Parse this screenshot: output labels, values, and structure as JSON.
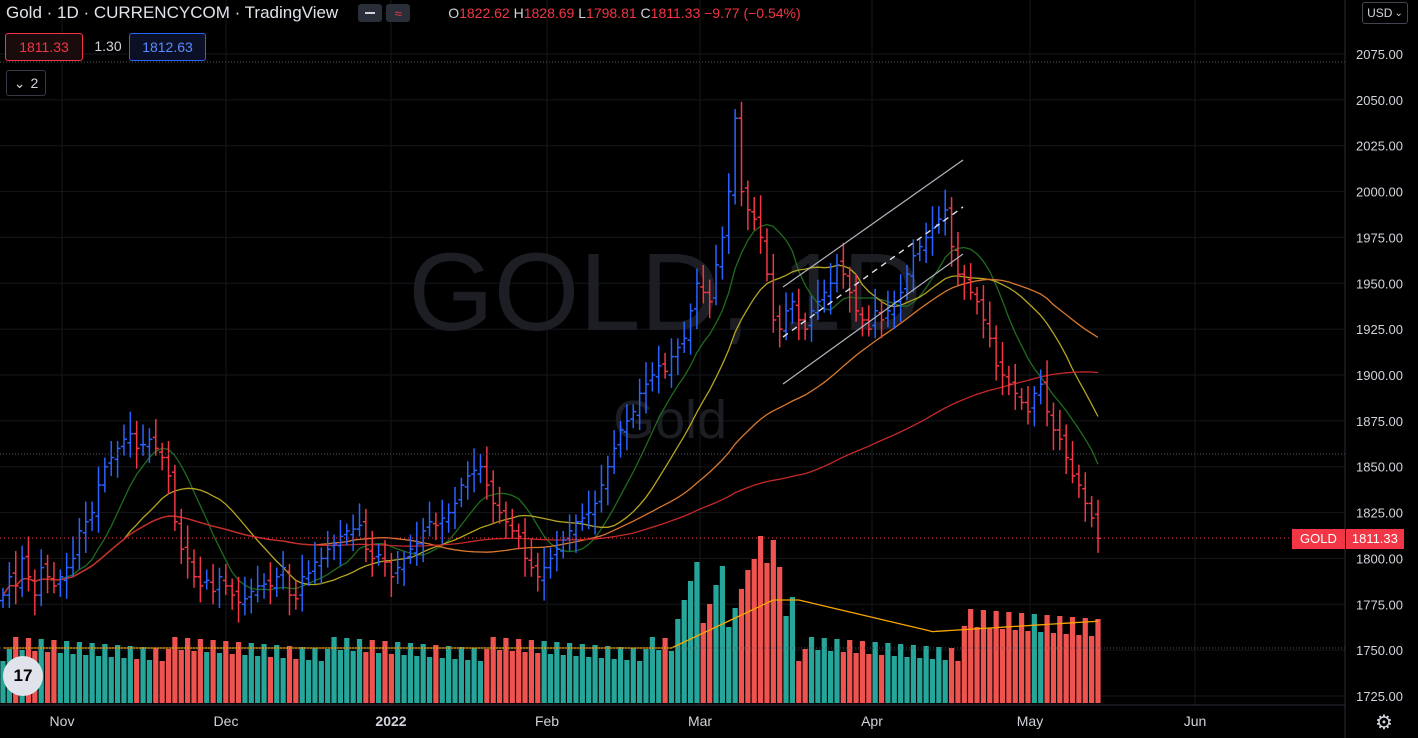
{
  "header": {
    "title": "Gold · 1D · CURRENCYCOM · TradingView",
    "ohlc": {
      "o_label": "O",
      "o": "1822.62",
      "h_label": "H",
      "h": "1828.69",
      "l_label": "L",
      "l": "1798.81",
      "c_label": "C",
      "c": "1811.33",
      "change": "−9.77 (−0.54%)"
    }
  },
  "quote": {
    "bid": "1811.33",
    "spread": "1.30",
    "ask": "1812.63"
  },
  "indicators_count": "2",
  "currency": "USD",
  "price_label": {
    "symbol": "GOLD",
    "value": "1811.33"
  },
  "watermark": {
    "main": "GOLD, 1D",
    "sub": "Gold"
  },
  "colors": {
    "up": "#2962ff",
    "down": "#f23645",
    "vol_up": "#26a69a",
    "vol_down": "#ef5350",
    "accent": "#f23645"
  },
  "chart_data": {
    "type": "bar",
    "ylim": [
      1720,
      2085
    ],
    "y_ticks": [
      1725,
      1750,
      1775,
      1800,
      1825,
      1850,
      1875,
      1900,
      1925,
      1950,
      1975,
      2000,
      2025,
      2050,
      2075
    ],
    "x_labels": [
      "Nov",
      "Dec",
      "2022",
      "Feb",
      "Mar",
      "Apr",
      "May",
      "Jun"
    ],
    "last_price": 1811.33,
    "series": [
      {
        "name": "Gold",
        "kind": "ohlc",
        "closes": [
          1780,
          1790,
          1785,
          1800,
          1790,
          1780,
          1795,
          1790,
          1785,
          1790,
          1795,
          1800,
          1815,
          1820,
          1825,
          1840,
          1850,
          1855,
          1860,
          1865,
          1868,
          1860,
          1862,
          1865,
          1860,
          1855,
          1845,
          1820,
          1805,
          1800,
          1790,
          1785,
          1788,
          1782,
          1790,
          1785,
          1780,
          1776,
          1778,
          1782,
          1785,
          1786,
          1785,
          1790,
          1795,
          1780,
          1778,
          1790,
          1792,
          1798,
          1800,
          1805,
          1808,
          1812,
          1815,
          1816,
          1818,
          1805,
          1800,
          1802,
          1798,
          1790,
          1795,
          1800,
          1805,
          1808,
          1815,
          1820,
          1818,
          1822,
          1825,
          1830,
          1840,
          1845,
          1848,
          1850,
          1840,
          1830,
          1825,
          1820,
          1815,
          1812,
          1800,
          1795,
          1790,
          1795,
          1800,
          1805,
          1810,
          1815,
          1820,
          1822,
          1825,
          1830,
          1840,
          1850,
          1860,
          1870,
          1875,
          1880,
          1890,
          1895,
          1900,
          1905,
          1902,
          1910,
          1915,
          1920,
          1935,
          1950,
          1945,
          1940,
          1960,
          1975,
          2000,
          2040,
          2000,
          1990,
          1985,
          1975,
          1955,
          1930,
          1925,
          1935,
          1940,
          1930,
          1925,
          1935,
          1940,
          1945,
          1950,
          1960,
          1955,
          1945,
          1935,
          1930,
          1925,
          1935,
          1930,
          1935,
          1940,
          1945,
          1955,
          1965,
          1970,
          1975,
          1980,
          1985,
          1990,
          1970,
          1955,
          1950,
          1945,
          1940,
          1930,
          1920,
          1905,
          1900,
          1895,
          1890,
          1885,
          1880,
          1890,
          1895,
          1880,
          1870,
          1865,
          1855,
          1845,
          1840,
          1830,
          1822,
          1811
        ]
      }
    ]
  }
}
